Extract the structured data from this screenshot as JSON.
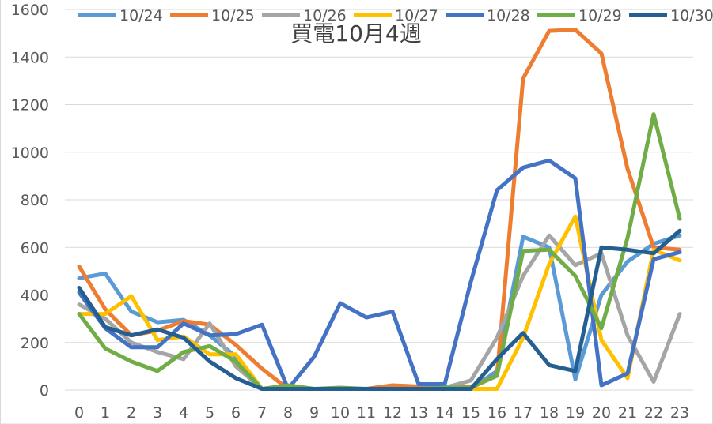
{
  "chart_data": {
    "type": "line",
    "title": "買電10月4週",
    "xlabel": "",
    "ylabel": "",
    "x": [
      0,
      1,
      2,
      3,
      4,
      5,
      6,
      7,
      8,
      9,
      10,
      11,
      12,
      13,
      14,
      15,
      16,
      17,
      18,
      19,
      20,
      21,
      22,
      23
    ],
    "ylim": [
      0,
      1600
    ],
    "yticks": [
      0,
      200,
      400,
      600,
      800,
      1000,
      1200,
      1400,
      1600
    ],
    "grid": true,
    "legend": "top",
    "series": [
      {
        "name": "10/24",
        "color": "#5B9BD5",
        "values": [
          470,
          490,
          330,
          285,
          295,
          230,
          140,
          5,
          5,
          5,
          5,
          5,
          5,
          5,
          5,
          5,
          80,
          645,
          600,
          45,
          400,
          540,
          615,
          650
        ]
      },
      {
        "name": "10/25",
        "color": "#ED7D31",
        "values": [
          520,
          340,
          230,
          250,
          290,
          275,
          190,
          90,
          5,
          5,
          5,
          5,
          20,
          15,
          15,
          15,
          60,
          1310,
          1510,
          1515,
          1415,
          930,
          600,
          590
        ]
      },
      {
        "name": "10/26",
        "color": "#A5A5A5",
        "values": [
          360,
          300,
          200,
          160,
          130,
          280,
          100,
          5,
          5,
          5,
          5,
          5,
          5,
          5,
          10,
          40,
          220,
          480,
          650,
          525,
          575,
          230,
          35,
          320
        ]
      },
      {
        "name": "10/27",
        "color": "#FFC000",
        "values": [
          320,
          320,
          395,
          210,
          225,
          150,
          150,
          5,
          5,
          5,
          5,
          5,
          5,
          5,
          5,
          5,
          5,
          220,
          530,
          730,
          210,
          50,
          590,
          545
        ]
      },
      {
        "name": "10/28",
        "color": "#4472C4",
        "values": [
          410,
          260,
          180,
          180,
          280,
          230,
          235,
          275,
          5,
          140,
          365,
          305,
          330,
          25,
          25,
          455,
          840,
          935,
          965,
          890,
          20,
          70,
          550,
          580
        ]
      },
      {
        "name": "10/29",
        "color": "#70AD47",
        "values": [
          320,
          175,
          120,
          80,
          160,
          185,
          120,
          5,
          20,
          5,
          10,
          5,
          5,
          5,
          10,
          10,
          60,
          585,
          590,
          480,
          260,
          640,
          1160,
          720
        ]
      },
      {
        "name": "10/30",
        "color": "#255E91",
        "values": [
          430,
          265,
          230,
          255,
          220,
          120,
          50,
          5,
          5,
          5,
          5,
          5,
          5,
          5,
          5,
          5,
          130,
          240,
          105,
          80,
          600,
          590,
          575,
          670
        ]
      }
    ]
  }
}
